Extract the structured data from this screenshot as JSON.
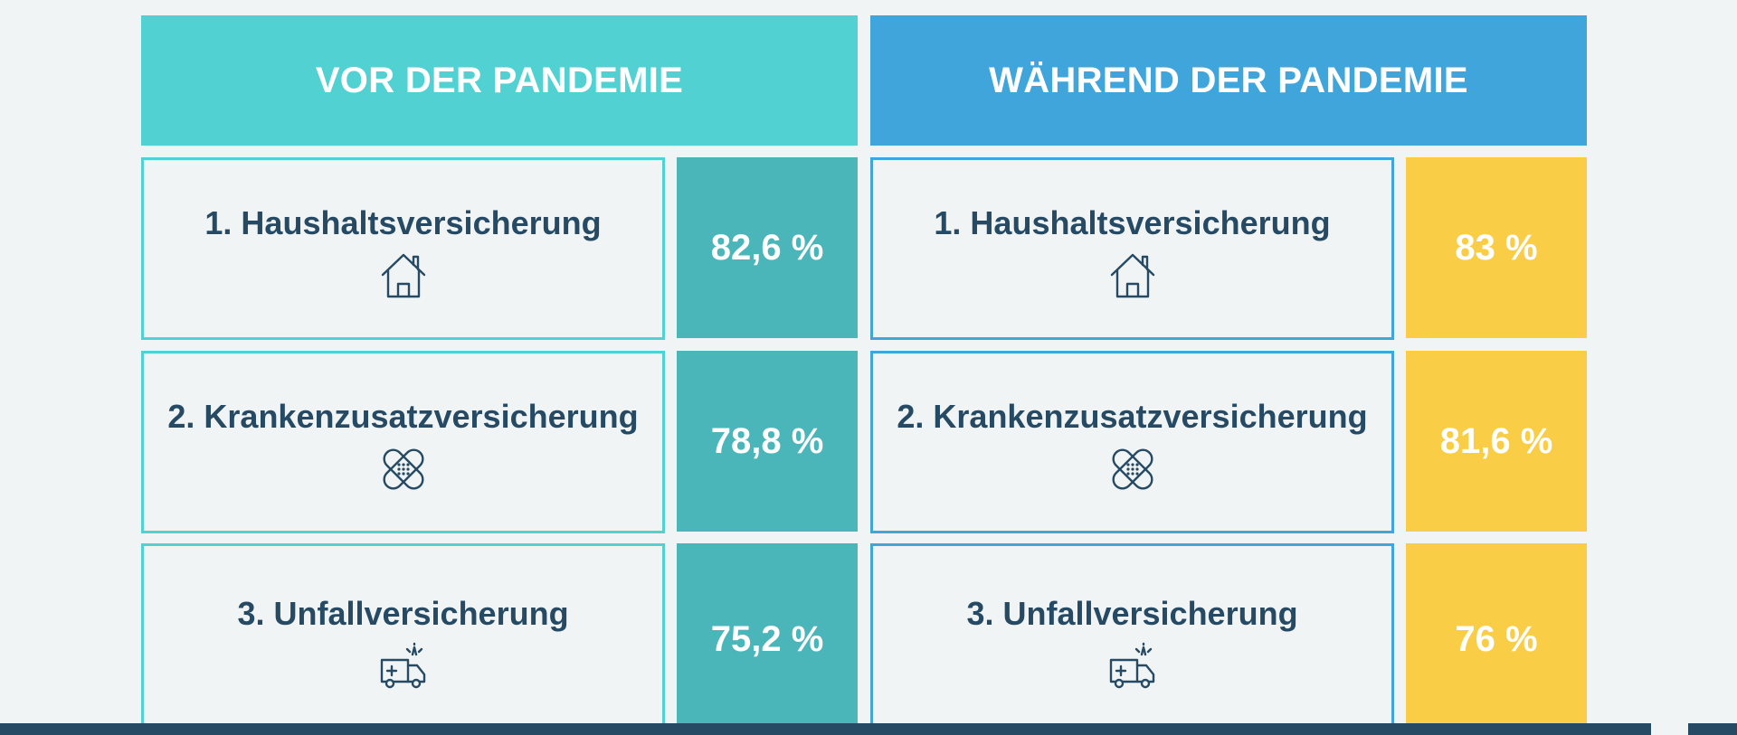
{
  "headers": {
    "before": "VOR DER PANDEMIE",
    "during": "WÄHREND DER PANDEMIE"
  },
  "rows": [
    {
      "label": "1. Haushaltsversicherung",
      "icon": "house-icon",
      "before": "82,6 %",
      "during": "83 %"
    },
    {
      "label": "2. Krankenzusatzversicherung",
      "icon": "bandage-icon",
      "before": "78,8 %",
      "during": "81,6 %"
    },
    {
      "label": "3. Unfallversicherung",
      "icon": "ambulance-icon",
      "before": "75,2 %",
      "during": "76 %"
    }
  ],
  "colors": {
    "turquoise": "#52d1d3",
    "teal": "#4ab6ba",
    "blue": "#3fa5db",
    "yellow": "#f9cd45",
    "navy": "#264a63",
    "background": "#f1f4f5"
  }
}
